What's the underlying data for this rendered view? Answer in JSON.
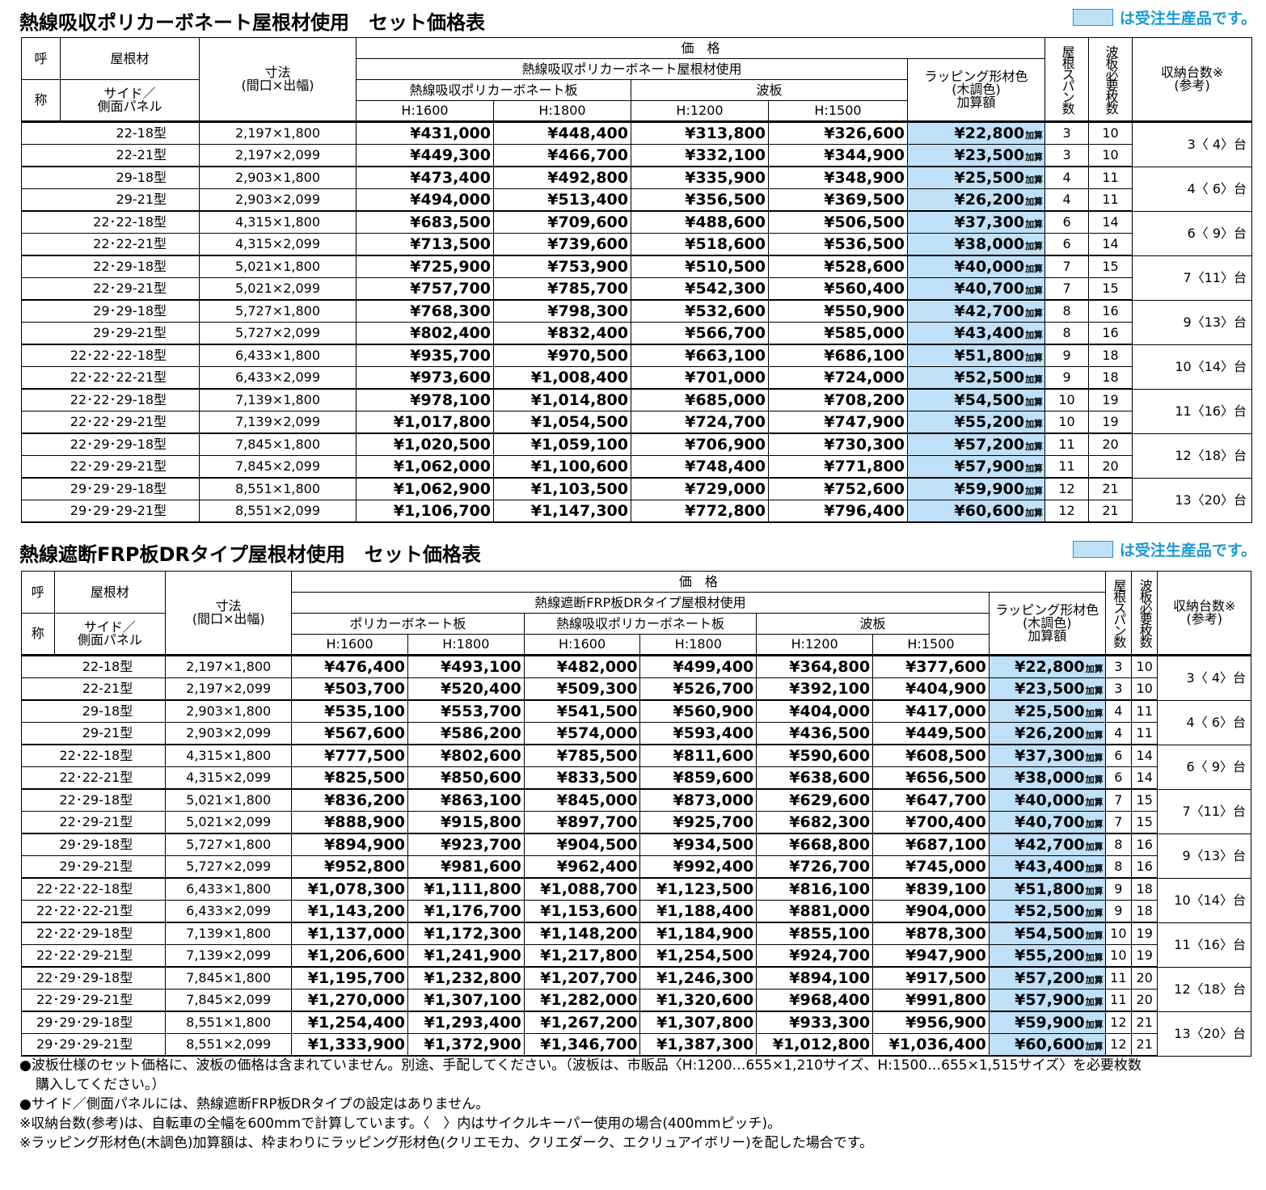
{
  "legend_text": "は受注生産品です。",
  "table1": {
    "title": "熱線吸収ポリカーボネート屋根材使用　セット価格表",
    "headers": {
      "yobi1": "呼",
      "yobi2": "称",
      "roof": "屋根材",
      "side": "サイド／\n側面パネル",
      "size": "寸法\n(間口×出幅)",
      "price": "価　格",
      "roofgroup": "熱線吸収ポリカーボネート屋根材使用",
      "sub1": "熱線吸収ポリカーボネート板",
      "sub2": "波板",
      "wrap": "ラッピング形材色\n(木調色)\n加算額",
      "span": "屋根スパン数",
      "wave": "波板必要枚数",
      "cap": "収納台数※\n(参考)",
      "h1": "H:1600",
      "h2": "H:1800",
      "h3": "H:1200",
      "h4": "H:1500"
    },
    "add_label": "加算",
    "rows": [
      [
        "22-18型",
        "2,197×1,800",
        "¥431,000",
        "¥448,400",
        "¥313,800",
        "¥326,600",
        "¥22,800",
        "3",
        "10"
      ],
      [
        "22-21型",
        "2,197×2,099",
        "¥449,300",
        "¥466,700",
        "¥332,100",
        "¥344,900",
        "¥23,500",
        "3",
        "10"
      ],
      [
        "29-18型",
        "2,903×1,800",
        "¥473,400",
        "¥492,800",
        "¥335,900",
        "¥348,900",
        "¥25,500",
        "4",
        "11"
      ],
      [
        "29-21型",
        "2,903×2,099",
        "¥494,000",
        "¥513,400",
        "¥356,500",
        "¥369,500",
        "¥26,200",
        "4",
        "11"
      ],
      [
        "22･22-18型",
        "4,315×1,800",
        "¥683,500",
        "¥709,600",
        "¥488,600",
        "¥506,500",
        "¥37,300",
        "6",
        "14"
      ],
      [
        "22･22-21型",
        "4,315×2,099",
        "¥713,500",
        "¥739,600",
        "¥518,600",
        "¥536,500",
        "¥38,000",
        "6",
        "14"
      ],
      [
        "22･29-18型",
        "5,021×1,800",
        "¥725,900",
        "¥753,900",
        "¥510,500",
        "¥528,600",
        "¥40,000",
        "7",
        "15"
      ],
      [
        "22･29-21型",
        "5,021×2,099",
        "¥757,700",
        "¥785,700",
        "¥542,300",
        "¥560,400",
        "¥40,700",
        "7",
        "15"
      ],
      [
        "29･29-18型",
        "5,727×1,800",
        "¥768,300",
        "¥798,300",
        "¥532,600",
        "¥550,900",
        "¥42,700",
        "8",
        "16"
      ],
      [
        "29･29-21型",
        "5,727×2,099",
        "¥802,400",
        "¥832,400",
        "¥566,700",
        "¥585,000",
        "¥43,400",
        "8",
        "16"
      ],
      [
        "22･22･22-18型",
        "6,433×1,800",
        "¥935,700",
        "¥970,500",
        "¥663,100",
        "¥686,100",
        "¥51,800",
        "9",
        "18"
      ],
      [
        "22･22･22-21型",
        "6,433×2,099",
        "¥973,600",
        "¥1,008,400",
        "¥701,000",
        "¥724,000",
        "¥52,500",
        "9",
        "18"
      ],
      [
        "22･22･29-18型",
        "7,139×1,800",
        "¥978,100",
        "¥1,014,800",
        "¥685,000",
        "¥708,200",
        "¥54,500",
        "10",
        "19"
      ],
      [
        "22･22･29-21型",
        "7,139×2,099",
        "¥1,017,800",
        "¥1,054,500",
        "¥724,700",
        "¥747,900",
        "¥55,200",
        "10",
        "19"
      ],
      [
        "22･29･29-18型",
        "7,845×1,800",
        "¥1,020,500",
        "¥1,059,100",
        "¥706,900",
        "¥730,300",
        "¥57,200",
        "11",
        "20"
      ],
      [
        "22･29･29-21型",
        "7,845×2,099",
        "¥1,062,000",
        "¥1,100,600",
        "¥748,400",
        "¥771,800",
        "¥57,900",
        "11",
        "20"
      ],
      [
        "29･29･29-18型",
        "8,551×1,800",
        "¥1,062,900",
        "¥1,103,500",
        "¥729,000",
        "¥752,600",
        "¥59,900",
        "12",
        "21"
      ],
      [
        "29･29･29-21型",
        "8,551×2,099",
        "¥1,106,700",
        "¥1,147,300",
        "¥772,800",
        "¥796,400",
        "¥60,600",
        "12",
        "21"
      ]
    ],
    "caps": [
      "3〈 4〉台",
      "4〈 6〉台",
      "6〈 9〉台",
      "7〈11〉台",
      "9〈13〉台",
      "10〈14〉台",
      "11〈16〉台",
      "12〈18〉台",
      "13〈20〉台"
    ]
  },
  "table2": {
    "title": "熱線遮断FRP板DRタイプ屋根材使用　セット価格表",
    "headers": {
      "roofgroup": "熱線遮断FRP板DRタイプ屋根材使用",
      "sub1": "ポリカーボネート板",
      "sub2": "熱線吸収ポリカーボネート板",
      "sub3": "波板"
    },
    "rows": [
      [
        "22-18型",
        "2,197×1,800",
        "¥476,400",
        "¥493,100",
        "¥482,000",
        "¥499,400",
        "¥364,800",
        "¥377,600",
        "¥22,800",
        "3",
        "10"
      ],
      [
        "22-21型",
        "2,197×2,099",
        "¥503,700",
        "¥520,400",
        "¥509,300",
        "¥526,700",
        "¥392,100",
        "¥404,900",
        "¥23,500",
        "3",
        "10"
      ],
      [
        "29-18型",
        "2,903×1,800",
        "¥535,100",
        "¥553,700",
        "¥541,500",
        "¥560,900",
        "¥404,000",
        "¥417,000",
        "¥25,500",
        "4",
        "11"
      ],
      [
        "29-21型",
        "2,903×2,099",
        "¥567,600",
        "¥586,200",
        "¥574,000",
        "¥593,400",
        "¥436,500",
        "¥449,500",
        "¥26,200",
        "4",
        "11"
      ],
      [
        "22･22-18型",
        "4,315×1,800",
        "¥777,500",
        "¥802,600",
        "¥785,500",
        "¥811,600",
        "¥590,600",
        "¥608,500",
        "¥37,300",
        "6",
        "14"
      ],
      [
        "22･22-21型",
        "4,315×2,099",
        "¥825,500",
        "¥850,600",
        "¥833,500",
        "¥859,600",
        "¥638,600",
        "¥656,500",
        "¥38,000",
        "6",
        "14"
      ],
      [
        "22･29-18型",
        "5,021×1,800",
        "¥836,200",
        "¥863,100",
        "¥845,000",
        "¥873,000",
        "¥629,600",
        "¥647,700",
        "¥40,000",
        "7",
        "15"
      ],
      [
        "22･29-21型",
        "5,021×2,099",
        "¥888,900",
        "¥915,800",
        "¥897,700",
        "¥925,700",
        "¥682,300",
        "¥700,400",
        "¥40,700",
        "7",
        "15"
      ],
      [
        "29･29-18型",
        "5,727×1,800",
        "¥894,900",
        "¥923,700",
        "¥904,500",
        "¥934,500",
        "¥668,800",
        "¥687,100",
        "¥42,700",
        "8",
        "16"
      ],
      [
        "29･29-21型",
        "5,727×2,099",
        "¥952,800",
        "¥981,600",
        "¥962,400",
        "¥992,400",
        "¥726,700",
        "¥745,000",
        "¥43,400",
        "8",
        "16"
      ],
      [
        "22･22･22-18型",
        "6,433×1,800",
        "¥1,078,300",
        "¥1,111,800",
        "¥1,088,700",
        "¥1,123,500",
        "¥816,100",
        "¥839,100",
        "¥51,800",
        "9",
        "18"
      ],
      [
        "22･22･22-21型",
        "6,433×2,099",
        "¥1,143,200",
        "¥1,176,700",
        "¥1,153,600",
        "¥1,188,400",
        "¥881,000",
        "¥904,000",
        "¥52,500",
        "9",
        "18"
      ],
      [
        "22･22･29-18型",
        "7,139×1,800",
        "¥1,137,000",
        "¥1,172,300",
        "¥1,148,200",
        "¥1,184,900",
        "¥855,100",
        "¥878,300",
        "¥54,500",
        "10",
        "19"
      ],
      [
        "22･22･29-21型",
        "7,139×2,099",
        "¥1,206,600",
        "¥1,241,900",
        "¥1,217,800",
        "¥1,254,500",
        "¥924,700",
        "¥947,900",
        "¥55,200",
        "10",
        "19"
      ],
      [
        "22･29･29-18型",
        "7,845×1,800",
        "¥1,195,700",
        "¥1,232,800",
        "¥1,207,700",
        "¥1,246,300",
        "¥894,100",
        "¥917,500",
        "¥57,200",
        "11",
        "20"
      ],
      [
        "22･29･29-21型",
        "7,845×2,099",
        "¥1,270,000",
        "¥1,307,100",
        "¥1,282,000",
        "¥1,320,600",
        "¥968,400",
        "¥991,800",
        "¥57,900",
        "11",
        "20"
      ],
      [
        "29･29･29-18型",
        "8,551×1,800",
        "¥1,254,400",
        "¥1,293,400",
        "¥1,267,200",
        "¥1,307,800",
        "¥933,300",
        "¥956,900",
        "¥59,900",
        "12",
        "21"
      ],
      [
        "29･29･29-21型",
        "8,551×2,099",
        "¥1,333,900",
        "¥1,372,900",
        "¥1,346,700",
        "¥1,387,300",
        "¥1,012,800",
        "¥1,036,400",
        "¥60,600",
        "12",
        "21"
      ]
    ]
  },
  "notes": [
    "●波板仕様のセット価格に、波板の価格は含まれていません。別途、手配してください。（波板は、市販品〈H:1200…655×1,210サイズ、H:1500…655×1,515サイズ〉を必要枚数",
    "購入してください。）",
    "●サイド／側面パネルには、熱線遮断FRP板DRタイプの設定はありません。",
    "※収納台数(参考)は、自転車の全幅を600mmで計算しています。〈　〉内はサイクルキーパー使用の場合(400mmピッチ)。",
    "※ラッピング形材色(木調色)加算額は、枠まわりにラッピング形材色(クリエモカ、クリエダーク、エクリュアイボリー)を配した場合です。"
  ]
}
